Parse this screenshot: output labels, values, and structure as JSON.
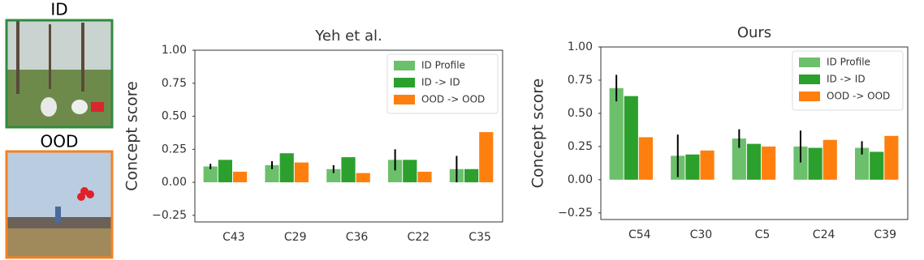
{
  "images": [
    {
      "label": "ID",
      "border": "#2e8b3e"
    },
    {
      "label": "OOD",
      "border": "#f5821f"
    }
  ],
  "chart_data": [
    {
      "type": "bar",
      "title": "Yeh et al.",
      "y_label": "Concept score",
      "categories": [
        "C43",
        "C29",
        "C36",
        "C22",
        "C35"
      ],
      "series": [
        {
          "name": "ID Profile",
          "color": "#6cc06c",
          "values": [
            0.12,
            0.13,
            0.1,
            0.17,
            0.1
          ],
          "errors": [
            0.02,
            0.03,
            0.03,
            0.08,
            0.1
          ]
        },
        {
          "name": "ID -> ID",
          "color": "#2ca02c",
          "values": [
            0.17,
            0.22,
            0.19,
            0.17,
            0.1
          ]
        },
        {
          "name": "OOD -> OOD",
          "color": "#ff7f0e",
          "values": [
            0.08,
            0.15,
            0.07,
            0.08,
            0.38
          ]
        }
      ],
      "ylim": [
        -0.3,
        1.0
      ],
      "yticks": [
        {
          "value": -0.25,
          "label": "−0.25"
        },
        {
          "value": 0,
          "label": "0.00"
        },
        {
          "value": 0.25,
          "label": "0.25"
        },
        {
          "value": 0.5,
          "label": "0.50"
        },
        {
          "value": 0.75,
          "label": "0.75"
        },
        {
          "value": 1,
          "label": "1.00"
        }
      ],
      "grid": false,
      "legend": "upper right"
    },
    {
      "type": "bar",
      "title": "Ours",
      "y_label": "Concept score",
      "categories": [
        "C54",
        "C30",
        "C5",
        "C24",
        "C39"
      ],
      "series": [
        {
          "name": "ID Profile",
          "color": "#6cc06c",
          "values": [
            0.69,
            0.18,
            0.31,
            0.25,
            0.24
          ],
          "errors": [
            0.1,
            0.16,
            0.07,
            0.12,
            0.05
          ]
        },
        {
          "name": "ID -> ID",
          "color": "#2ca02c",
          "values": [
            0.63,
            0.19,
            0.27,
            0.24,
            0.21
          ]
        },
        {
          "name": "OOD -> OOD",
          "color": "#ff7f0e",
          "values": [
            0.32,
            0.22,
            0.25,
            0.3,
            0.33
          ]
        }
      ],
      "ylim": [
        -0.3,
        1.0
      ],
      "yticks": [
        {
          "value": -0.25,
          "label": "−0.25"
        },
        {
          "value": 0,
          "label": "0.00"
        },
        {
          "value": 0.25,
          "label": "0.25"
        },
        {
          "value": 0.5,
          "label": "0.50"
        },
        {
          "value": 0.75,
          "label": "0.75"
        },
        {
          "value": 1,
          "label": "1.00"
        }
      ],
      "grid": false,
      "legend": "upper right"
    }
  ]
}
